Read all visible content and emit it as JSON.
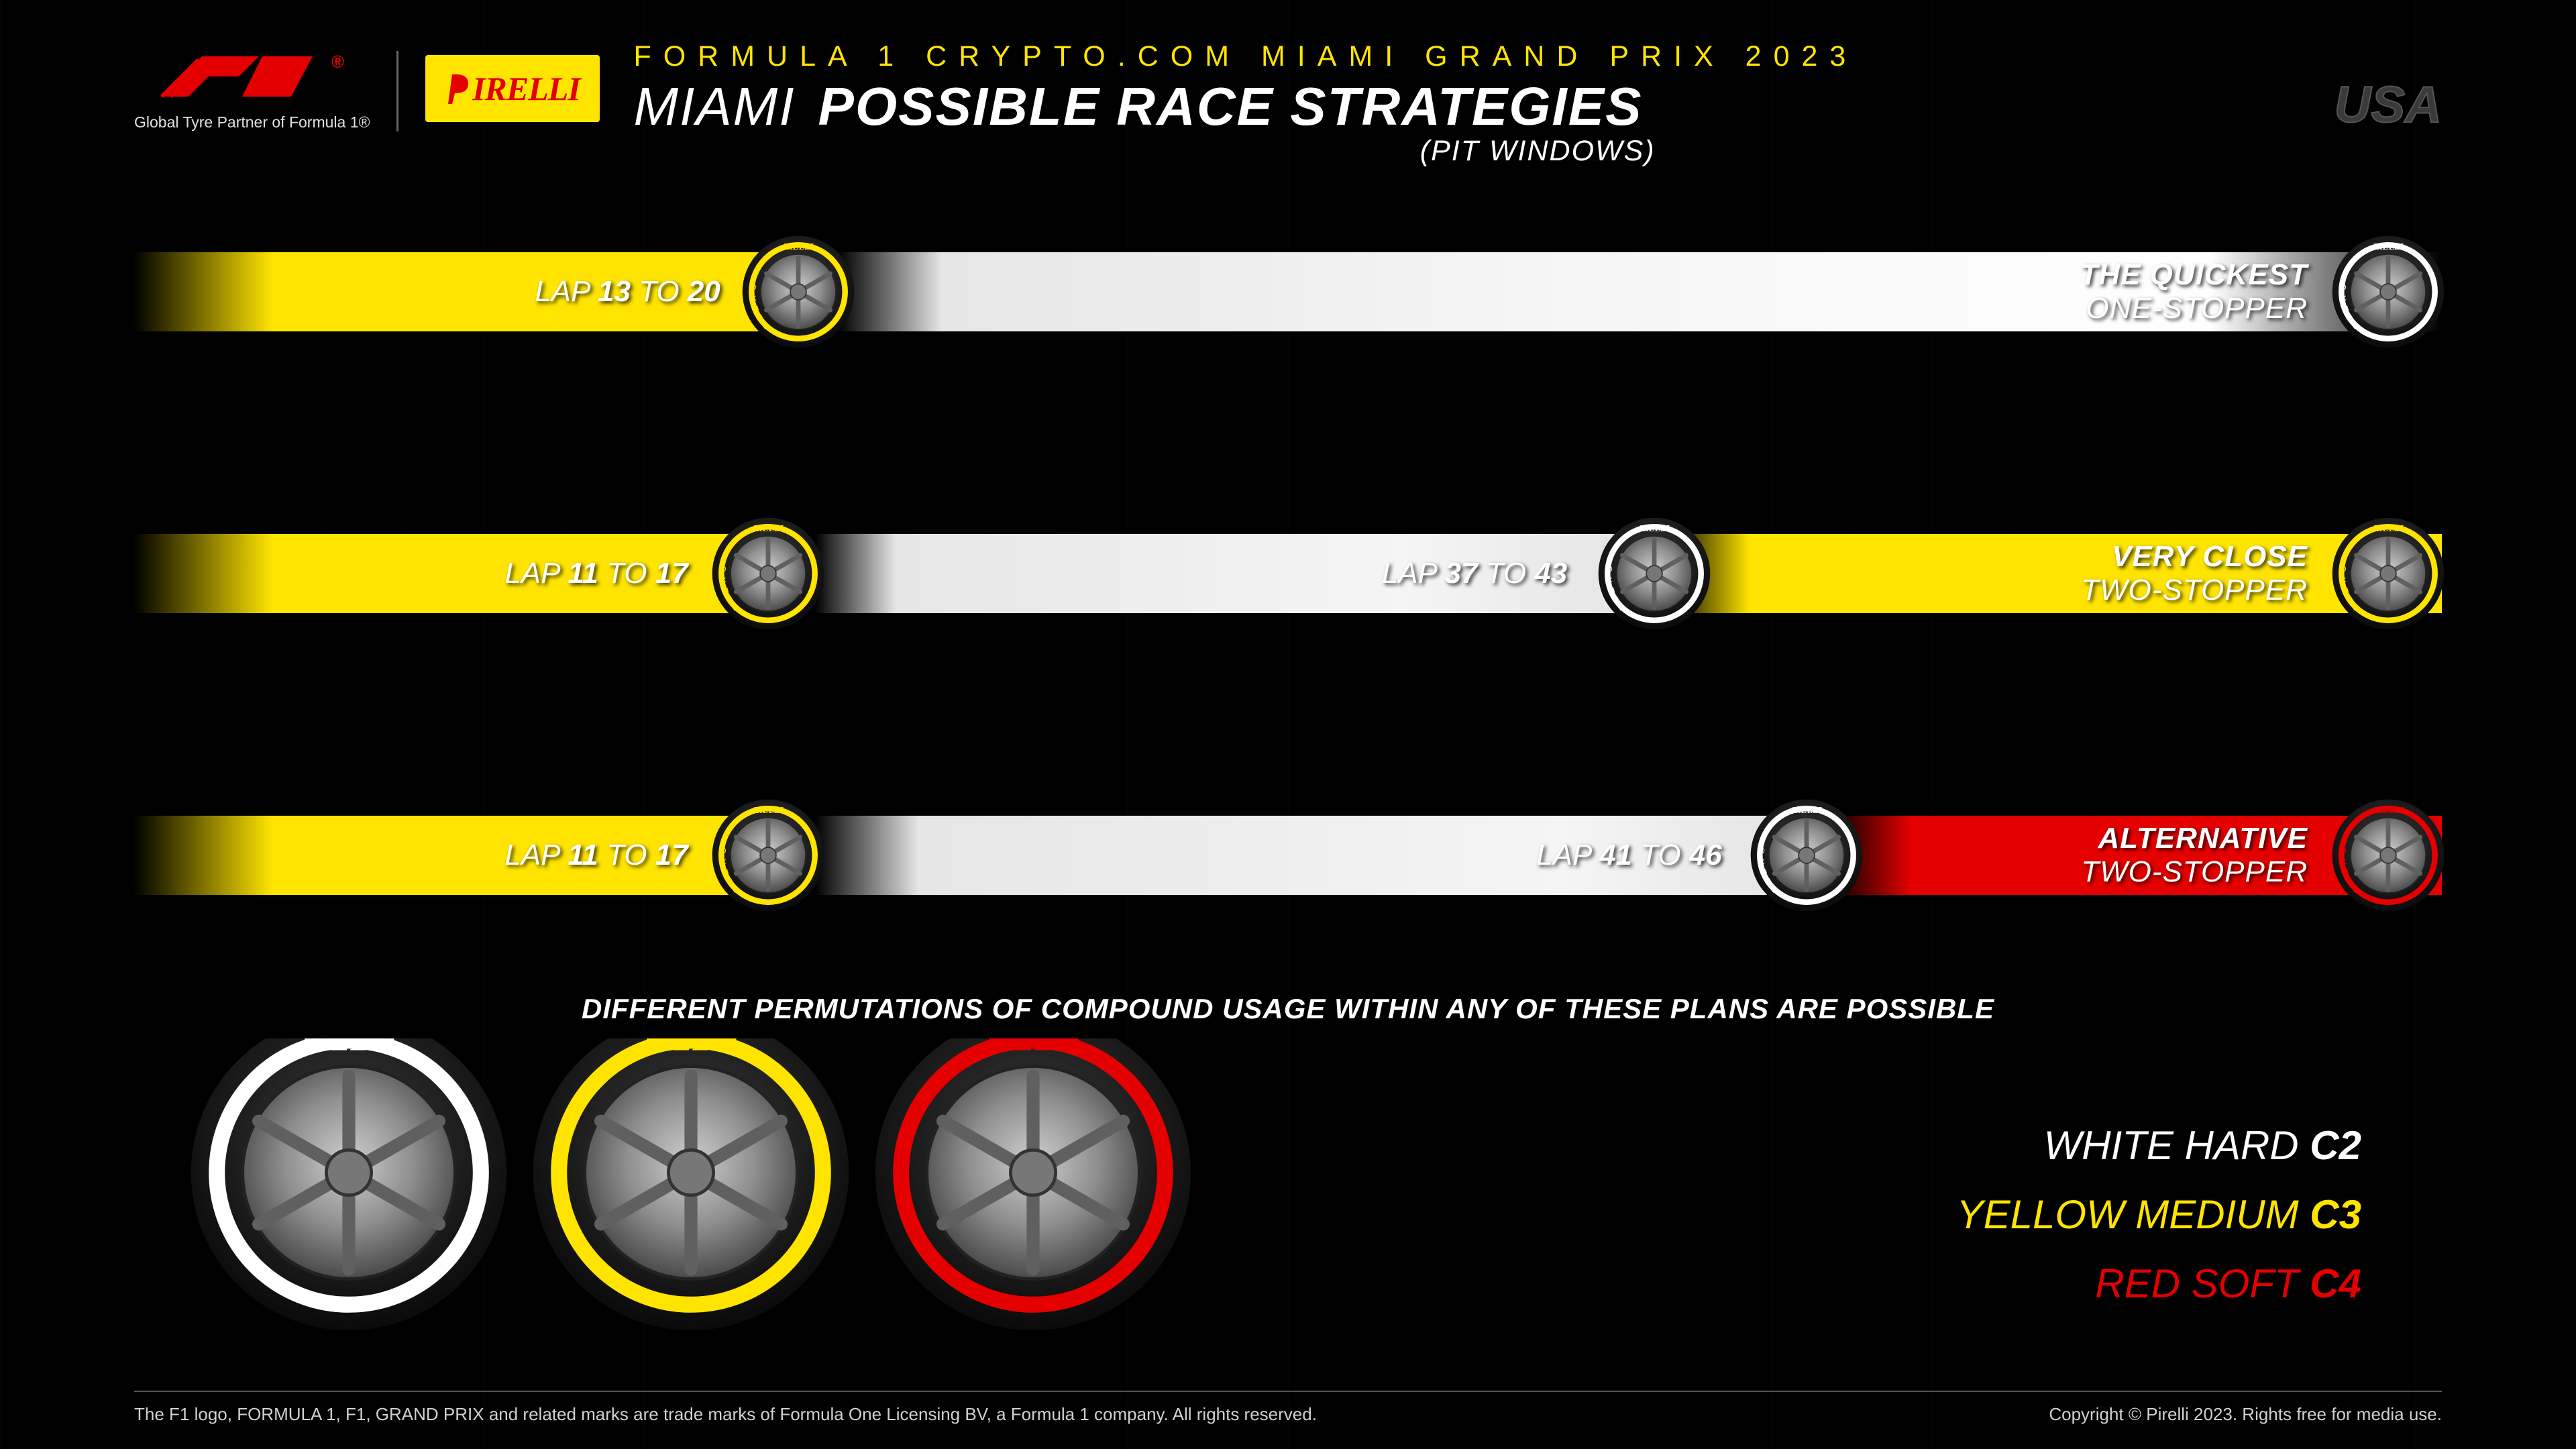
{
  "colors": {
    "yellow": "#ffe400",
    "red": "#e40000",
    "white": "#ffffff",
    "silver": "#e6e6e6",
    "black": "#000000",
    "grey_text": "#d0d0d0",
    "muted": "#3a3a3a"
  },
  "brand": {
    "pirelli_wordmark": "IRELLI",
    "tagline": "Global Tyre Partner of Formula 1®"
  },
  "header": {
    "eyebrow": "FORMULA 1 CRYPTO.COM MIAMI GRAND PRIX 2023",
    "title_city": "MIAMI",
    "title_main": "POSSIBLE RACE STRATEGIES",
    "subtitle": "(PIT WINDOWS)",
    "country": "USA"
  },
  "strategies": [
    {
      "name_line1": "THE QUICKEST",
      "name_line2": "ONE-STOPPER",
      "name_color": "#ffffff",
      "grad_class": "grad-ywhite",
      "stints": [
        {
          "compound": "medium",
          "color": "#ffe400",
          "label_prefix": "LAP",
          "from": 13,
          "to": 20,
          "tyre_left_pct": 26.3,
          "label_right_pct": 74.6
        },
        {
          "compound": "hard",
          "color": "#ffffff",
          "tyre_left_pct": 95.2
        }
      ]
    },
    {
      "name_line1": "VERY CLOSE",
      "name_line2": "TWO-STOPPER",
      "name_color": "#ffffff",
      "grad_class": "grad-yy",
      "stints": [
        {
          "compound": "medium",
          "color": "#ffe400",
          "label_prefix": "LAP",
          "from": 11,
          "to": 17,
          "tyre_left_pct": 25.0,
          "label_right_pct": 76.0
        },
        {
          "compound": "hard",
          "color": "#ffffff",
          "label_prefix": "LAP",
          "from": 37,
          "to": 43,
          "tyre_left_pct": 63.4,
          "label_right_pct": 37.9
        },
        {
          "compound": "medium",
          "color": "#ffe400",
          "tyre_left_pct": 95.2
        }
      ]
    },
    {
      "name_line1": "ALTERNATIVE",
      "name_line2": "TWO-STOPPER",
      "name_color": "#ffffff",
      "grad_class": "grad-ywr",
      "stints": [
        {
          "compound": "medium",
          "color": "#ffe400",
          "label_prefix": "LAP",
          "from": 11,
          "to": 17,
          "tyre_left_pct": 25.0,
          "label_right_pct": 76.0
        },
        {
          "compound": "hard",
          "color": "#ffffff",
          "label_prefix": "LAP",
          "from": 41,
          "to": 46,
          "tyre_left_pct": 70.0,
          "label_right_pct": 31.2
        },
        {
          "compound": "soft",
          "color": "#e40000",
          "tyre_left_pct": 95.2
        }
      ]
    }
  ],
  "note": "DIFFERENT PERMUTATIONS OF COMPOUND USAGE WITHIN ANY OF THESE PLANS ARE POSSIBLE",
  "compounds": {
    "hard": {
      "label": "WHITE HARD",
      "code": "C2",
      "color": "#ffffff"
    },
    "medium": {
      "label": "YELLOW MEDIUM",
      "code": "C3",
      "color": "#ffe400"
    },
    "soft": {
      "label": "RED SOFT",
      "code": "C4",
      "color": "#e40000"
    }
  },
  "footer": {
    "left": "The F1 logo, FORMULA 1, F1, GRAND PRIX and related marks are trade marks of Formula One Licensing BV, a Formula 1 company. All rights reserved.",
    "right": "Copyright © Pirelli 2023. Rights free for media use."
  }
}
